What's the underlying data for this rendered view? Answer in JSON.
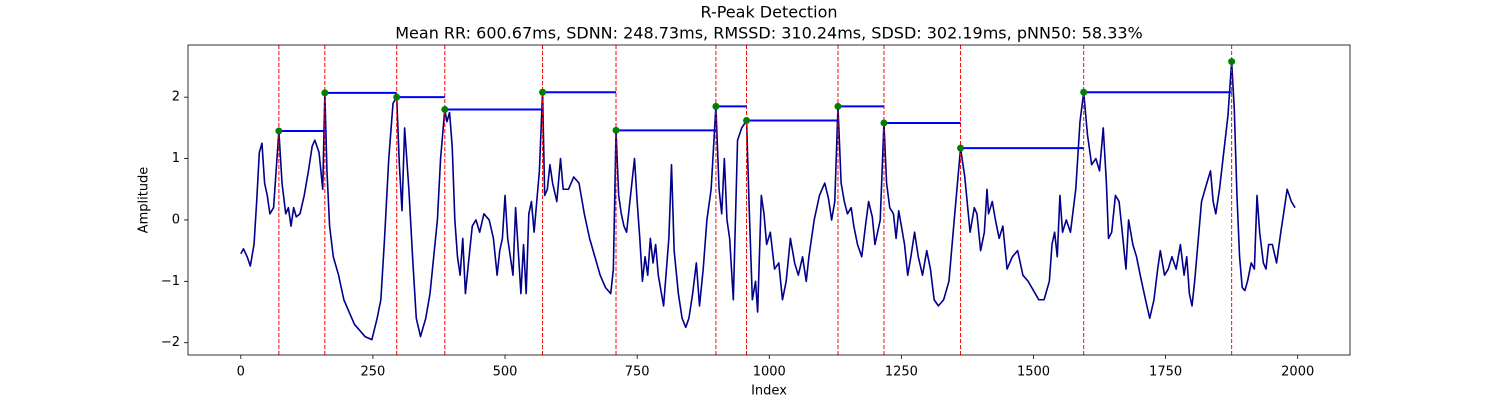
{
  "chart_data": {
    "type": "line",
    "title": "R-Peak Detection",
    "subtitle": "Mean RR: 600.67ms, SDNN: 248.73ms, RMSSD: 310.24ms, SDSD: 302.19ms, pNN50: 58.33%",
    "xlabel": "Index",
    "ylabel": "Amplitude",
    "xlim": [
      -99.95,
      2098.95
    ],
    "ylim": [
      -2.2,
      2.85
    ],
    "xticks": [
      0,
      250,
      500,
      750,
      1000,
      1250,
      1500,
      1750,
      2000
    ],
    "yticks": [
      {
        "value": -2,
        "label": "−2"
      },
      {
        "value": -1,
        "label": "−1"
      },
      0,
      1,
      2
    ],
    "series": [
      {
        "color": "#00008b",
        "x": [
          0,
          5,
          12,
          18,
          25,
          30,
          35,
          40,
          45,
          50,
          55,
          62,
          72,
          78,
          85,
          90,
          95,
          100,
          105,
          112,
          120,
          128,
          135,
          140,
          148,
          155,
          159,
          163,
          168,
          175,
          185,
          195,
          205,
          215,
          225,
          235,
          248,
          258,
          265,
          272,
          280,
          288,
          295,
          300,
          305,
          310,
          318,
          325,
          332,
          340,
          350,
          358,
          365,
          372,
          378,
          386,
          390,
          395,
          400,
          405,
          410,
          415,
          420,
          425,
          432,
          438,
          445,
          452,
          460,
          470,
          478,
          485,
          490,
          495,
          500,
          505,
          510,
          515,
          520,
          525,
          530,
          535,
          540,
          545,
          550,
          555,
          560,
          565,
          571,
          575,
          580,
          585,
          590,
          598,
          605,
          610,
          620,
          630,
          640,
          650,
          660,
          670,
          680,
          690,
          700,
          705,
          710,
          715,
          720,
          725,
          730,
          735,
          740,
          745,
          750,
          755,
          760,
          765,
          770,
          775,
          780,
          785,
          790,
          800,
          810,
          815,
          820,
          828,
          835,
          842,
          848,
          855,
          862,
          868,
          875,
          882,
          890,
          899,
          905,
          910,
          915,
          920,
          925,
          932,
          940,
          948,
          957,
          962,
          968,
          974,
          978,
          985,
          990,
          995,
          1002,
          1010,
          1018,
          1025,
          1032,
          1040,
          1048,
          1055,
          1063,
          1070,
          1075,
          1085,
          1095,
          1105,
          1112,
          1118,
          1124,
          1130,
          1136,
          1142,
          1148,
          1155,
          1160,
          1167,
          1175,
          1182,
          1188,
          1195,
          1200,
          1210,
          1217,
          1222,
          1228,
          1235,
          1240,
          1245,
          1250,
          1256,
          1262,
          1268,
          1275,
          1282,
          1290,
          1298,
          1305,
          1312,
          1320,
          1330,
          1340,
          1350,
          1362,
          1370,
          1380,
          1388,
          1393,
          1400,
          1407,
          1412,
          1415,
          1422,
          1428,
          1435,
          1442,
          1450,
          1460,
          1470,
          1480,
          1490,
          1500,
          1510,
          1520,
          1530,
          1535,
          1540,
          1545,
          1550,
          1555,
          1562,
          1570,
          1580,
          1588,
          1595,
          1602,
          1610,
          1618,
          1625,
          1632,
          1638,
          1642,
          1648,
          1655,
          1662,
          1668,
          1675,
          1680,
          1688,
          1695,
          1702,
          1712,
          1720,
          1728,
          1735,
          1740,
          1748,
          1755,
          1762,
          1770,
          1778,
          1785,
          1790,
          1795,
          1800,
          1805,
          1810,
          1818,
          1828,
          1835,
          1840,
          1845,
          1852,
          1860,
          1868,
          1875,
          1880,
          1885,
          1890,
          1895,
          1900,
          1905,
          1912,
          1918,
          1923,
          1928,
          1935,
          1940,
          1945,
          1952,
          1960,
          1968,
          1975,
          1980,
          1988,
          1995
        ],
        "values": [
          -0.55,
          -0.47,
          -0.6,
          -0.75,
          -0.4,
          0.3,
          1.1,
          1.25,
          0.6,
          0.4,
          0.1,
          0.2,
          1.45,
          0.6,
          0.1,
          0.2,
          -0.1,
          0.2,
          0.05,
          0.1,
          0.4,
          0.8,
          1.2,
          1.3,
          1.1,
          0.5,
          2.07,
          0.8,
          -0.1,
          -0.6,
          -0.9,
          -1.3,
          -1.5,
          -1.7,
          -1.8,
          -1.9,
          -1.95,
          -1.6,
          -1.3,
          -0.3,
          1.0,
          1.9,
          2.0,
          0.9,
          0.15,
          1.5,
          0.5,
          -0.6,
          -1.6,
          -1.9,
          -1.6,
          -1.2,
          -0.6,
          0.0,
          1.0,
          1.8,
          1.6,
          1.75,
          1.2,
          0.0,
          -0.6,
          -0.9,
          -0.3,
          -1.2,
          -0.6,
          -0.1,
          0.0,
          -0.2,
          0.1,
          0.0,
          -0.3,
          -0.9,
          -0.5,
          -0.3,
          0.4,
          -0.3,
          -0.6,
          -0.9,
          0.2,
          -0.5,
          -1.2,
          -0.4,
          -1.2,
          0.1,
          0.3,
          -0.2,
          0.3,
          0.8,
          2.08,
          0.4,
          0.5,
          0.9,
          0.6,
          0.3,
          1.0,
          0.5,
          0.5,
          0.7,
          0.6,
          0.1,
          -0.3,
          -0.6,
          -0.9,
          -1.1,
          -1.2,
          -0.8,
          1.46,
          0.4,
          0.1,
          -0.1,
          -0.2,
          0.2,
          0.6,
          1.0,
          0.3,
          -0.3,
          -1.0,
          -0.6,
          -0.9,
          -0.3,
          -0.7,
          -0.4,
          -0.9,
          -1.4,
          -0.3,
          0.9,
          -0.5,
          -1.2,
          -1.6,
          -1.75,
          -1.6,
          -1.2,
          -0.7,
          -1.4,
          -0.8,
          0.0,
          0.5,
          1.85,
          0.5,
          0.1,
          1.0,
          0.0,
          -0.3,
          -1.3,
          1.3,
          1.5,
          1.62,
          0.2,
          -1.3,
          -1.0,
          -1.5,
          0.4,
          0.1,
          -0.4,
          -0.2,
          -0.8,
          -0.7,
          -1.3,
          -1.0,
          -0.3,
          -0.7,
          -0.9,
          -0.6,
          -1.0,
          -0.6,
          0.0,
          0.4,
          0.6,
          0.35,
          0.0,
          0.3,
          1.85,
          0.6,
          0.3,
          0.1,
          0.2,
          -0.1,
          -0.4,
          -0.6,
          -0.1,
          0.3,
          0.05,
          -0.4,
          0.0,
          1.58,
          0.6,
          0.2,
          0.1,
          -0.3,
          0.15,
          -0.1,
          -0.4,
          -0.9,
          -0.6,
          -0.2,
          -0.6,
          -0.9,
          -0.5,
          -0.8,
          -1.3,
          -1.4,
          -1.3,
          -1.0,
          0.0,
          1.17,
          0.7,
          -0.2,
          0.2,
          0.1,
          -0.5,
          -0.2,
          0.5,
          0.1,
          0.3,
          0.0,
          -0.3,
          -0.1,
          -0.8,
          -0.6,
          -0.5,
          -0.9,
          -1.0,
          -1.15,
          -1.3,
          -1.3,
          -1.0,
          -0.4,
          -0.2,
          -0.6,
          0.4,
          -0.2,
          0.0,
          -0.2,
          0.5,
          1.6,
          2.08,
          1.4,
          0.9,
          1.0,
          0.8,
          1.5,
          0.6,
          -0.3,
          -0.2,
          0.4,
          0.3,
          -0.2,
          -0.8,
          0.0,
          -0.4,
          -0.6,
          -0.9,
          -1.3,
          -1.6,
          -1.3,
          -0.8,
          -0.5,
          -0.9,
          -0.8,
          -0.6,
          -0.8,
          -0.4,
          -0.9,
          -0.6,
          -1.2,
          -1.4,
          -1.0,
          -0.5,
          0.3,
          0.6,
          0.8,
          0.3,
          0.1,
          0.5,
          1.1,
          1.7,
          2.58,
          1.8,
          0.4,
          -0.6,
          -1.1,
          -1.15,
          -1.0,
          -0.7,
          -0.8,
          0.4,
          -0.2,
          -0.7,
          -0.8,
          -0.4,
          -0.4,
          -0.7,
          -0.2,
          0.2,
          0.5,
          0.3,
          0.2
        ]
      }
    ],
    "peaks": {
      "color": "#008000",
      "x": [
        72,
        159,
        295,
        386,
        571,
        710,
        899,
        957,
        1130,
        1217,
        1362,
        1595,
        1875
      ],
      "values": [
        1.45,
        2.07,
        2.0,
        1.8,
        2.08,
        1.46,
        1.85,
        1.62,
        1.85,
        1.58,
        1.17,
        2.08,
        2.58
      ]
    },
    "peak_line_color": "#ff0000",
    "rr_line_color": "#0000ff"
  }
}
